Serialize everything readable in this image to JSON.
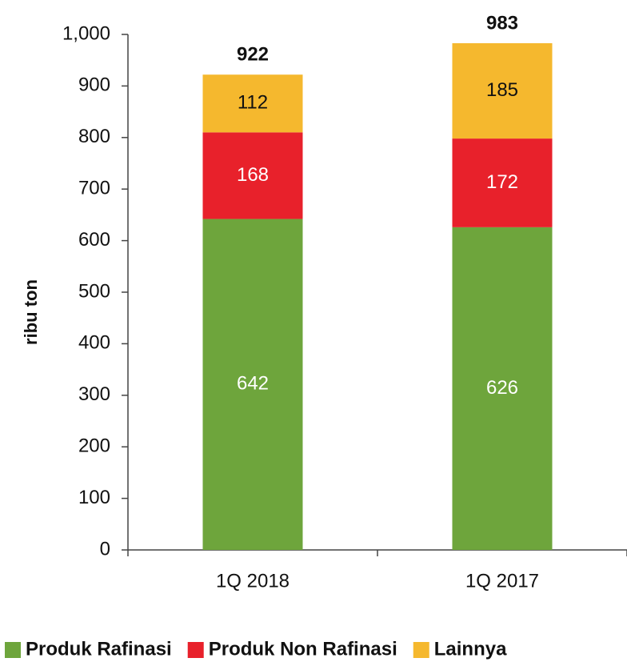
{
  "chart_data": {
    "type": "stacked_bar",
    "y_label": "ribu ton",
    "categories": [
      "1Q 2018",
      "1Q 2017"
    ],
    "series": [
      {
        "name": "Produk Rafinasi",
        "color": "#6ea53c",
        "values": [
          642,
          626
        ]
      },
      {
        "name": "Produk Non Rafinasi",
        "color": "#e8212b",
        "values": [
          168,
          172
        ]
      },
      {
        "name": "Lainnya",
        "color": "#f5b82e",
        "values": [
          112,
          185
        ]
      }
    ],
    "totals": [
      922,
      983
    ],
    "ylim": [
      0,
      1000
    ],
    "yticks": [
      0,
      100,
      200,
      300,
      400,
      500,
      600,
      700,
      800,
      900,
      {
        "value": 1000,
        "label": "1,000"
      }
    ],
    "legend": "bottom"
  }
}
